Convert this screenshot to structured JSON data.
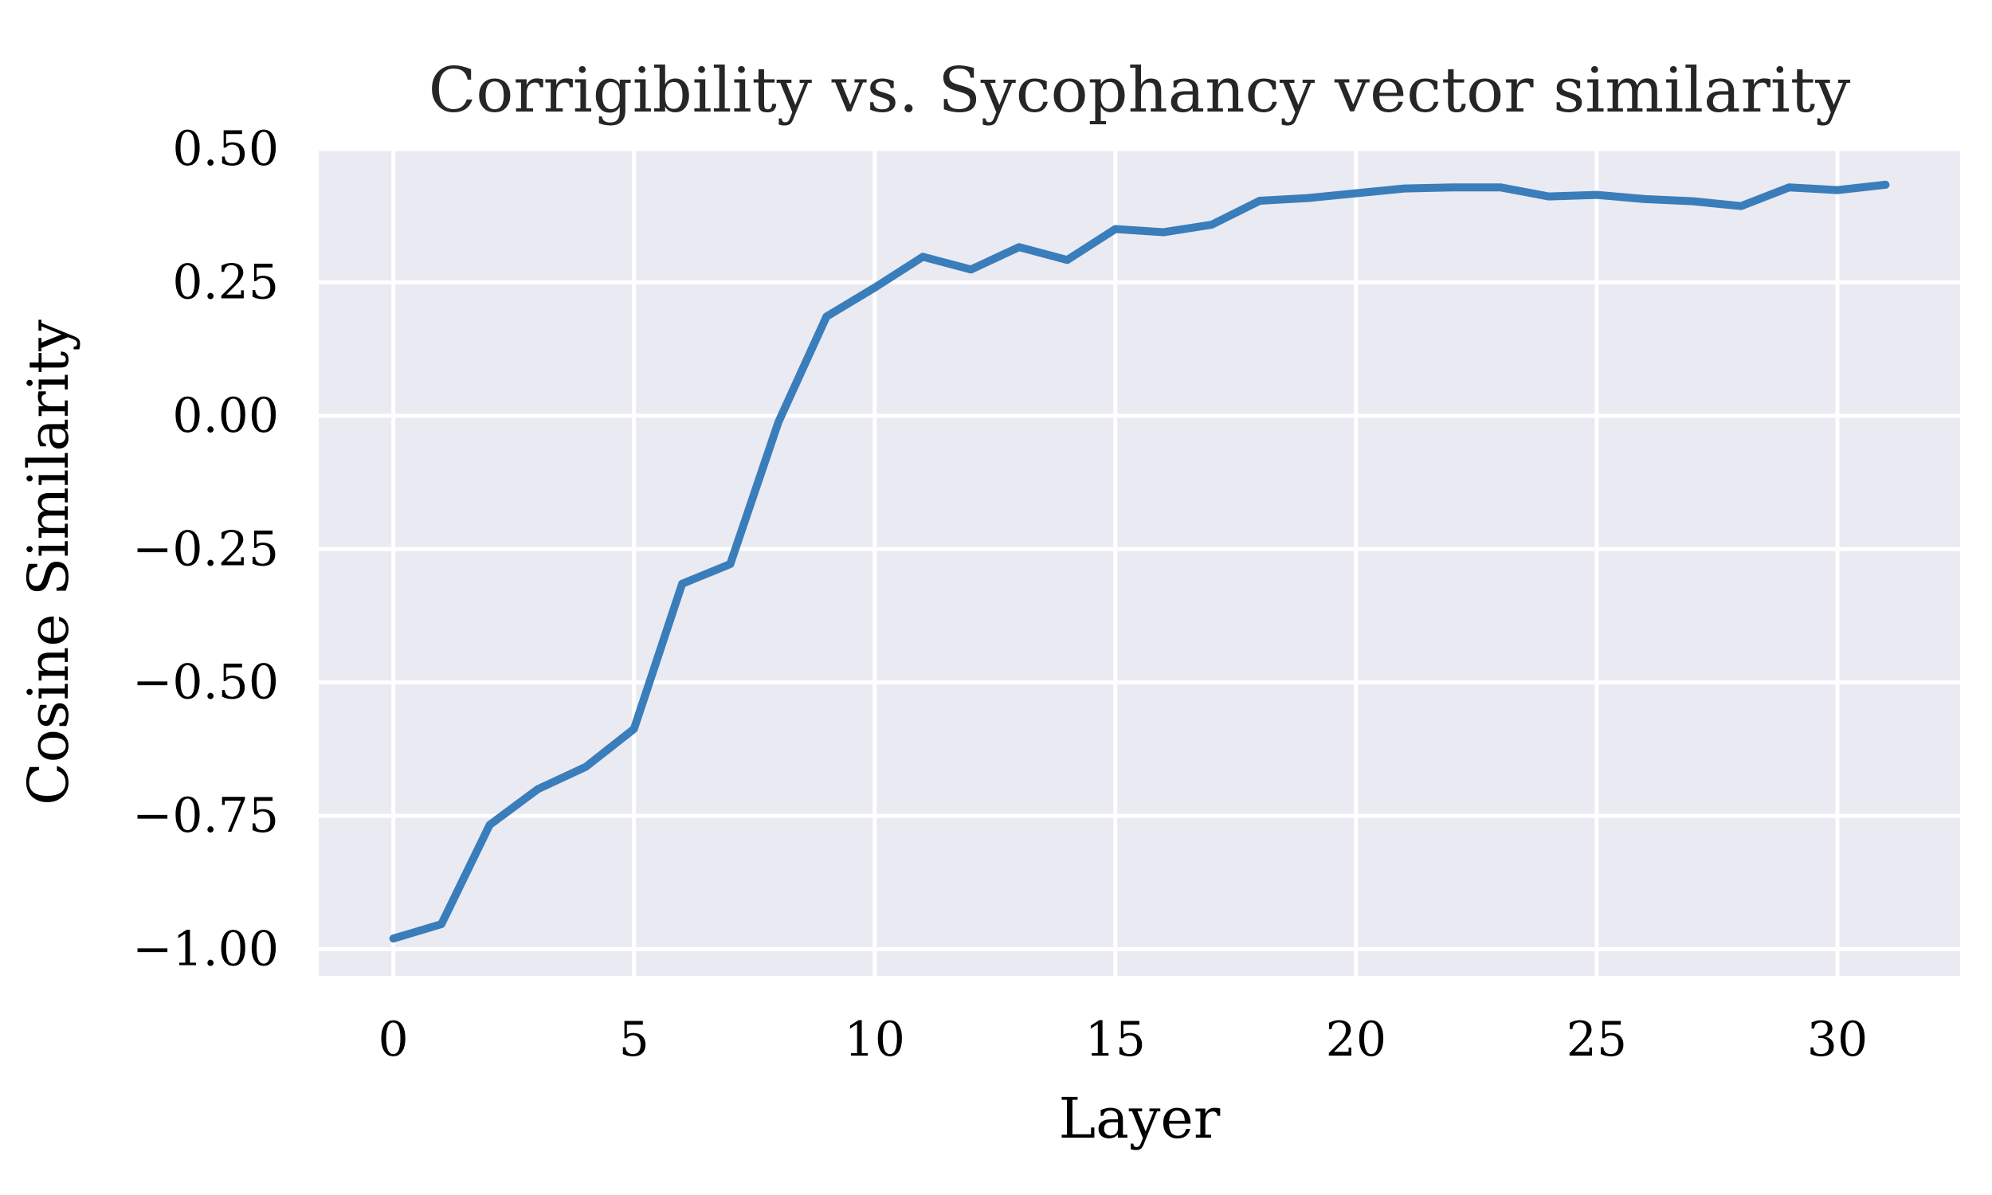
{
  "chart_data": {
    "type": "line",
    "title": "Corrigibility vs. Sycophancy vector similarity",
    "xlabel": "Layer",
    "ylabel": "Cosine Similarity",
    "xlim": [
      -1.55,
      32.55
    ],
    "ylim": [
      -1.05,
      0.5
    ],
    "xticks": [
      0,
      5,
      10,
      15,
      20,
      25,
      30
    ],
    "xtick_labels": [
      "0",
      "5",
      "10",
      "15",
      "20",
      "25",
      "30"
    ],
    "yticks": [
      0.5,
      0.25,
      0.0,
      -0.25,
      -0.5,
      -0.75,
      -1.0
    ],
    "ytick_labels": [
      "0.50",
      "0.25",
      "0.00",
      "−0.25",
      "−0.50",
      "−0.75",
      "−1.00"
    ],
    "grid": true,
    "legend": "none",
    "colors": {
      "plot_background": "#eaeaf2",
      "grid": "#ffffff",
      "line": "#3a7dbb"
    },
    "series": [
      {
        "x": [
          0,
          1,
          2,
          3,
          4,
          5,
          6,
          7,
          8,
          9,
          10,
          11,
          12,
          13,
          14,
          15,
          16,
          17,
          18,
          19,
          20,
          21,
          22,
          23,
          24,
          25,
          26,
          27,
          28,
          29,
          30,
          31
        ],
        "y": [
          -0.98,
          -0.953,
          -0.767,
          -0.7,
          -0.658,
          -0.587,
          -0.315,
          -0.278,
          -0.012,
          0.186,
          0.24,
          0.298,
          0.274,
          0.316,
          0.292,
          0.35,
          0.344,
          0.358,
          0.403,
          0.408,
          0.417,
          0.426,
          0.428,
          0.428,
          0.411,
          0.414,
          0.406,
          0.402,
          0.393,
          0.428,
          0.423,
          0.433
        ]
      }
    ]
  }
}
